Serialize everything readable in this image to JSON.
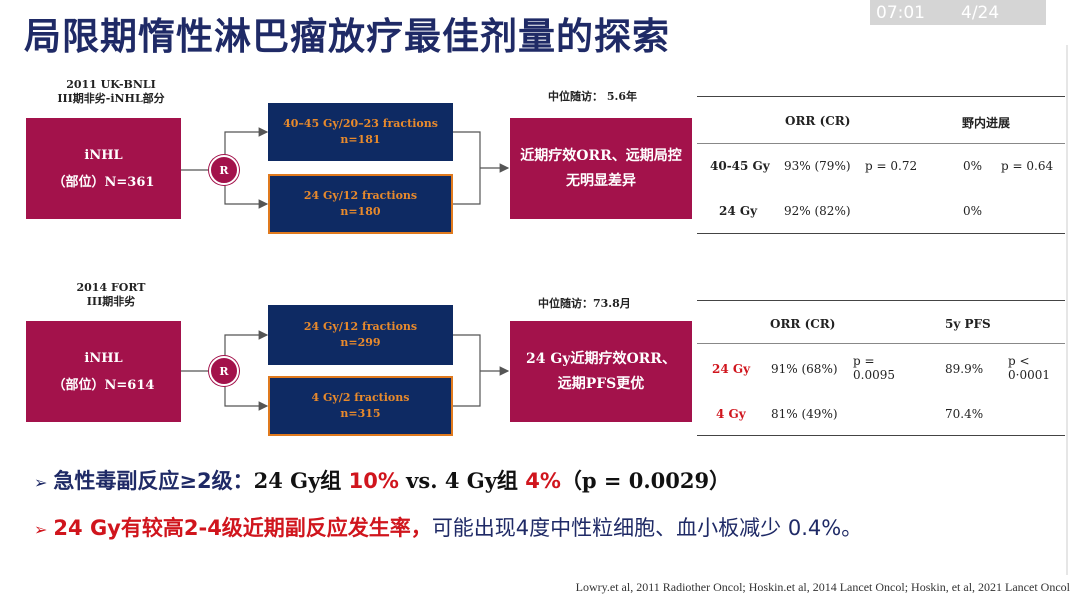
{
  "title": "局限期惰性淋巴瘤放疗最佳剂量的探索",
  "video": {
    "time": "07:01",
    "page": "4/24"
  },
  "study1": {
    "label_line1": "2011 UK-BNLI",
    "label_line2": "III期非劣-iNHL部分",
    "left_line1": "iNHL",
    "left_line2": "（部位）N=361",
    "r": "R",
    "arm1_line1": "40–45 Gy/20–23 fractions",
    "arm1_line2": "n=181",
    "arm2_line1": "24 Gy/12 fractions",
    "arm2_line2": "n=180",
    "result_line1": "近期疗效ORR、远期局控",
    "result_line2": "无明显差异",
    "followup": "中位随访：  5.6年",
    "table": {
      "h1": "ORR (CR)",
      "h2": "野内进展",
      "rows": [
        {
          "label": "40-45 Gy",
          "orr": "93% (79%)",
          "p1": "p = 0.72",
          "v2": "0%",
          "p2": "p = 0.64"
        },
        {
          "label": "24 Gy",
          "orr": "92% (82%)",
          "p1": "",
          "v2": "0%",
          "p2": ""
        }
      ]
    }
  },
  "study2": {
    "label_line1": "2014 FORT",
    "label_line2": "III期非劣",
    "left_line1": "iNHL",
    "left_line2": "（部位）N=614",
    "r": "R",
    "arm1_line1": "24 Gy/12 fractions",
    "arm1_line2": "n=299",
    "arm2_line1": "4 Gy/2 fractions",
    "arm2_line2": "n=315",
    "result_line1": "24 Gy近期疗效ORR、",
    "result_line2": "远期PFS更优",
    "followup": "中位随访：73.8月",
    "table": {
      "h1": "ORR (CR)",
      "h2": "5y PFS",
      "rows": [
        {
          "label": "24 Gy",
          "orr": "91% (68%)",
          "p1a": "p =",
          "p1b": "0.0095",
          "v2": "89.9%",
          "p2a": "p <",
          "p2b": "0·0001"
        },
        {
          "label": "4 Gy",
          "orr": "81% (49%)",
          "v2": "70.4%"
        }
      ]
    }
  },
  "bullets": {
    "b1": {
      "arrow": "➢",
      "pre": "急性毒副反应≥2级：",
      "p1": "24 Gy组 ",
      "v1": "10%",
      "vs": " vs.  4 Gy组 ",
      "v2": "4%",
      "tail": "（p = 0.0029）"
    },
    "b2": {
      "arrow": "➢",
      "main": "24 Gy有较高2-4级近期副反应发生率，",
      "rest": "可能出现4度中性粒细胞、血小板减少 0.4%。"
    }
  },
  "references": "Lowry.et al, 2011 Radiother Oncol; Hoskin.et al, 2014 Lancet Oncol; Hoskin, et al, 2021 Lancet Oncol"
}
